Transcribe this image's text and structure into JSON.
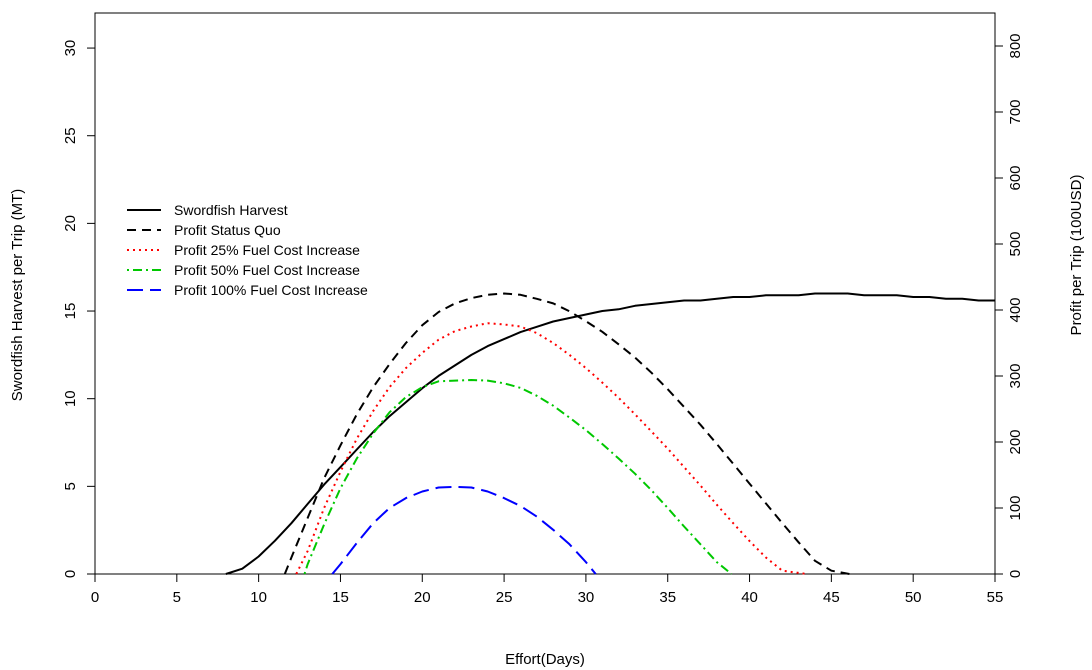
{
  "chart_data": {
    "type": "line",
    "title": "",
    "xlabel": "Effort(Days)",
    "ylabel": "Swordfish Harvest per Trip (MT)",
    "y2label": "Profit per Trip (100USD)",
    "xlim": [
      0,
      55
    ],
    "ylim": [
      0,
      32
    ],
    "y2lim": [
      0,
      850
    ],
    "x_ticks": [
      "0",
      "5",
      "10",
      "15",
      "20",
      "25",
      "30",
      "35",
      "40",
      "45",
      "50",
      "55"
    ],
    "y_ticks": [
      "0",
      "5",
      "10",
      "15",
      "20",
      "25",
      "30"
    ],
    "y2_ticks": [
      "0",
      "100",
      "200",
      "300",
      "400",
      "500",
      "600",
      "700",
      "800"
    ],
    "legend_position": "left",
    "grid": false,
    "series": [
      {
        "name": "Swordfish Harvest",
        "axis": "left",
        "color": "#000000",
        "dash": "solid",
        "x": [
          8,
          9,
          10,
          11,
          12,
          13,
          14,
          15,
          16,
          17,
          18,
          19,
          20,
          21,
          22,
          23,
          24,
          25,
          26,
          27,
          28,
          29,
          30,
          31,
          32,
          33,
          34,
          35,
          36,
          37,
          38,
          39,
          40,
          41,
          42,
          43,
          44,
          45,
          46,
          47,
          48,
          49,
          50,
          51,
          52,
          53,
          54,
          55
        ],
        "y": [
          0,
          0.3,
          1.0,
          1.9,
          2.9,
          4.0,
          5.1,
          6.1,
          7.1,
          8.1,
          9.0,
          9.8,
          10.6,
          11.3,
          11.9,
          12.5,
          13.0,
          13.4,
          13.8,
          14.1,
          14.4,
          14.6,
          14.8,
          15.0,
          15.1,
          15.3,
          15.4,
          15.5,
          15.6,
          15.6,
          15.7,
          15.8,
          15.8,
          15.9,
          15.9,
          15.9,
          16.0,
          16.0,
          16.0,
          15.9,
          15.9,
          15.9,
          15.8,
          15.8,
          15.7,
          15.7,
          15.6,
          15.6
        ]
      },
      {
        "name": "Profit Status Quo",
        "axis": "right",
        "color": "#000000",
        "dash": "long",
        "x": [
          11.6,
          12,
          13,
          14,
          15,
          16,
          17,
          18,
          19,
          20,
          21,
          22,
          23,
          24,
          25,
          26,
          27,
          28,
          29,
          30,
          31,
          32,
          33,
          34,
          35,
          36,
          37,
          38,
          39,
          40,
          41,
          42,
          43,
          44,
          45,
          46.1
        ],
        "y": [
          0,
          25,
          85,
          145,
          195,
          242,
          283,
          318,
          350,
          377,
          397,
          410,
          418,
          423,
          425,
          423,
          417,
          410,
          398,
          383,
          367,
          348,
          328,
          305,
          280,
          253,
          226,
          197,
          167,
          137,
          107,
          77,
          48,
          20,
          5,
          0
        ]
      },
      {
        "name": "Profit 25% Fuel Cost Increase",
        "axis": "right",
        "color": "#ff0000",
        "dash": "dotted",
        "x": [
          12.3,
          13,
          14,
          15,
          16,
          17,
          18,
          19,
          20,
          21,
          22,
          23,
          24,
          25,
          26,
          27,
          28,
          29,
          30,
          31,
          32,
          33,
          34,
          35,
          36,
          37,
          38,
          39,
          40,
          41,
          42,
          43.5
        ],
        "y": [
          0,
          35,
          100,
          155,
          205,
          247,
          283,
          312,
          335,
          355,
          368,
          375,
          380,
          378,
          375,
          365,
          350,
          332,
          312,
          290,
          267,
          242,
          216,
          190,
          162,
          134,
          105,
          77,
          50,
          25,
          5,
          0
        ]
      },
      {
        "name": "Profit 50% Fuel Cost Increase",
        "axis": "right",
        "color": "#00c800",
        "dash": "dotdash",
        "x": [
          12.8,
          13,
          14,
          15,
          16,
          17,
          18,
          19,
          20,
          21,
          22,
          23,
          24,
          25,
          26,
          27,
          28,
          29,
          30,
          31,
          32,
          33,
          34,
          35,
          36,
          37,
          38,
          38.9
        ],
        "y": [
          0,
          15,
          75,
          130,
          175,
          213,
          245,
          268,
          283,
          292,
          293,
          294,
          293,
          289,
          282,
          270,
          255,
          237,
          218,
          197,
          175,
          152,
          127,
          100,
          72,
          45,
          18,
          0
        ]
      },
      {
        "name": "Profit 100% Fuel Cost Increase",
        "axis": "right",
        "color": "#0000ff",
        "dash": "longer",
        "x": [
          14.5,
          15,
          16,
          17,
          18,
          19,
          20,
          21,
          22,
          23,
          24,
          25,
          26,
          27,
          28,
          29,
          30,
          30.6
        ],
        "y": [
          0,
          15,
          47,
          77,
          100,
          115,
          125,
          131,
          132,
          131,
          125,
          115,
          103,
          87,
          67,
          45,
          18,
          0
        ]
      }
    ]
  }
}
